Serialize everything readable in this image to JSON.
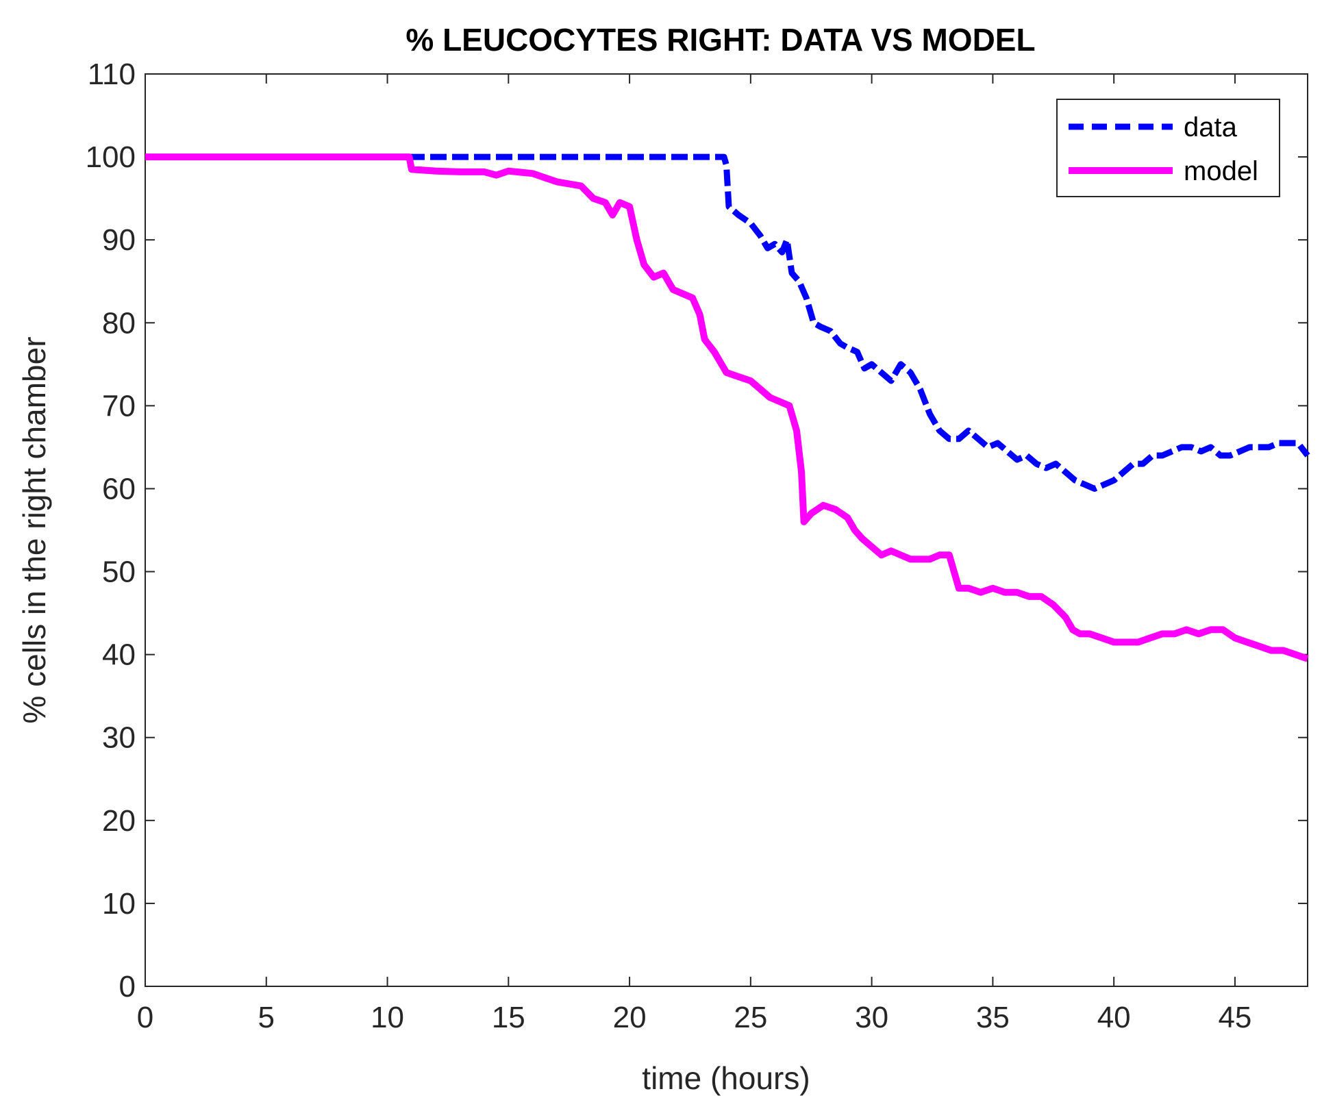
{
  "chart_data": {
    "type": "line",
    "title": "% LEUCOCYTES RIGHT: DATA VS MODEL",
    "xlabel": "time (hours)",
    "ylabel": "% cells in the right chamber",
    "xlim": [
      0,
      48
    ],
    "ylim": [
      0,
      110
    ],
    "xticks": [
      0,
      5,
      10,
      15,
      20,
      25,
      30,
      35,
      40,
      45
    ],
    "yticks": [
      0,
      10,
      20,
      30,
      40,
      50,
      60,
      70,
      80,
      90,
      100,
      110
    ],
    "grid": false,
    "legend_position": "top-right",
    "series": [
      {
        "name": "data",
        "color": "#0000ff",
        "style": "dashed",
        "points": [
          [
            0,
            100
          ],
          [
            23.9,
            100
          ],
          [
            24.0,
            99
          ],
          [
            24.1,
            94
          ],
          [
            24.5,
            93
          ],
          [
            25.0,
            92
          ],
          [
            25.4,
            90.5
          ],
          [
            25.7,
            89
          ],
          [
            26.0,
            89.5
          ],
          [
            26.3,
            88.5
          ],
          [
            26.5,
            90
          ],
          [
            26.7,
            86
          ],
          [
            27.0,
            85
          ],
          [
            27.3,
            83
          ],
          [
            27.6,
            80
          ],
          [
            27.9,
            79.5
          ],
          [
            28.3,
            79
          ],
          [
            28.7,
            77.5
          ],
          [
            29.0,
            77
          ],
          [
            29.4,
            76.5
          ],
          [
            29.7,
            74.5
          ],
          [
            30.0,
            75
          ],
          [
            30.4,
            74
          ],
          [
            30.8,
            73
          ],
          [
            31.2,
            75
          ],
          [
            31.6,
            74
          ],
          [
            32.0,
            72
          ],
          [
            32.4,
            69
          ],
          [
            32.8,
            67
          ],
          [
            33.2,
            66
          ],
          [
            33.6,
            66
          ],
          [
            34.0,
            67
          ],
          [
            34.4,
            66
          ],
          [
            34.8,
            65
          ],
          [
            35.2,
            65.5
          ],
          [
            35.6,
            64.5
          ],
          [
            36.0,
            63.5
          ],
          [
            36.4,
            64
          ],
          [
            36.8,
            63
          ],
          [
            37.2,
            62.5
          ],
          [
            37.6,
            63
          ],
          [
            38.0,
            62
          ],
          [
            38.4,
            61
          ],
          [
            38.8,
            60.5
          ],
          [
            39.2,
            60
          ],
          [
            39.6,
            60.5
          ],
          [
            40.0,
            61
          ],
          [
            40.4,
            62
          ],
          [
            40.8,
            63
          ],
          [
            41.2,
            63
          ],
          [
            41.6,
            64
          ],
          [
            42.0,
            64
          ],
          [
            42.4,
            64.5
          ],
          [
            42.8,
            65
          ],
          [
            43.2,
            65
          ],
          [
            43.6,
            64.5
          ],
          [
            44.0,
            65
          ],
          [
            44.4,
            64
          ],
          [
            44.8,
            64
          ],
          [
            45.2,
            64.5
          ],
          [
            45.6,
            65
          ],
          [
            46.0,
            65
          ],
          [
            46.4,
            65
          ],
          [
            46.8,
            65.5
          ],
          [
            47.2,
            65.5
          ],
          [
            47.6,
            65.5
          ],
          [
            48.0,
            64
          ]
        ]
      },
      {
        "name": "model",
        "color": "#ff00ff",
        "style": "solid",
        "points": [
          [
            0,
            100
          ],
          [
            10.9,
            100
          ],
          [
            11.0,
            98.5
          ],
          [
            12.0,
            98.3
          ],
          [
            13.0,
            98.2
          ],
          [
            14.0,
            98.2
          ],
          [
            14.5,
            97.8
          ],
          [
            15.0,
            98.3
          ],
          [
            16.0,
            98
          ],
          [
            16.5,
            97.5
          ],
          [
            17.0,
            97
          ],
          [
            18.0,
            96.5
          ],
          [
            18.5,
            95
          ],
          [
            19.0,
            94.5
          ],
          [
            19.3,
            93
          ],
          [
            19.6,
            94.5
          ],
          [
            20.0,
            94
          ],
          [
            20.3,
            90
          ],
          [
            20.6,
            87
          ],
          [
            21.0,
            85.5
          ],
          [
            21.4,
            86
          ],
          [
            21.8,
            84
          ],
          [
            22.2,
            83.5
          ],
          [
            22.6,
            83
          ],
          [
            22.9,
            81
          ],
          [
            23.1,
            78
          ],
          [
            23.5,
            76.5
          ],
          [
            24.0,
            74
          ],
          [
            24.5,
            73.5
          ],
          [
            25.0,
            73
          ],
          [
            25.4,
            72
          ],
          [
            25.8,
            71
          ],
          [
            26.2,
            70.5
          ],
          [
            26.6,
            70
          ],
          [
            26.9,
            67
          ],
          [
            27.1,
            62
          ],
          [
            27.2,
            56
          ],
          [
            27.5,
            57
          ],
          [
            28.0,
            58
          ],
          [
            28.5,
            57.5
          ],
          [
            29.0,
            56.5
          ],
          [
            29.3,
            55
          ],
          [
            29.6,
            54
          ],
          [
            30.0,
            53
          ],
          [
            30.4,
            52
          ],
          [
            30.8,
            52.5
          ],
          [
            31.2,
            52
          ],
          [
            31.6,
            51.5
          ],
          [
            32.0,
            51.5
          ],
          [
            32.4,
            51.5
          ],
          [
            32.8,
            52
          ],
          [
            33.2,
            52
          ],
          [
            33.4,
            50
          ],
          [
            33.6,
            48
          ],
          [
            34.0,
            48
          ],
          [
            34.5,
            47.5
          ],
          [
            35.0,
            48
          ],
          [
            35.5,
            47.5
          ],
          [
            36.0,
            47.5
          ],
          [
            36.5,
            47
          ],
          [
            37.0,
            47
          ],
          [
            37.5,
            46
          ],
          [
            38.0,
            44.5
          ],
          [
            38.3,
            43
          ],
          [
            38.6,
            42.5
          ],
          [
            39.0,
            42.5
          ],
          [
            39.5,
            42
          ],
          [
            40.0,
            41.5
          ],
          [
            40.5,
            41.5
          ],
          [
            41.0,
            41.5
          ],
          [
            41.5,
            42
          ],
          [
            42.0,
            42.5
          ],
          [
            42.5,
            42.5
          ],
          [
            43.0,
            43
          ],
          [
            43.5,
            42.5
          ],
          [
            44.0,
            43
          ],
          [
            44.5,
            43
          ],
          [
            45.0,
            42
          ],
          [
            45.5,
            41.5
          ],
          [
            46.0,
            41
          ],
          [
            46.5,
            40.5
          ],
          [
            47.0,
            40.5
          ],
          [
            47.5,
            40
          ],
          [
            48.0,
            39.5
          ]
        ]
      }
    ]
  }
}
